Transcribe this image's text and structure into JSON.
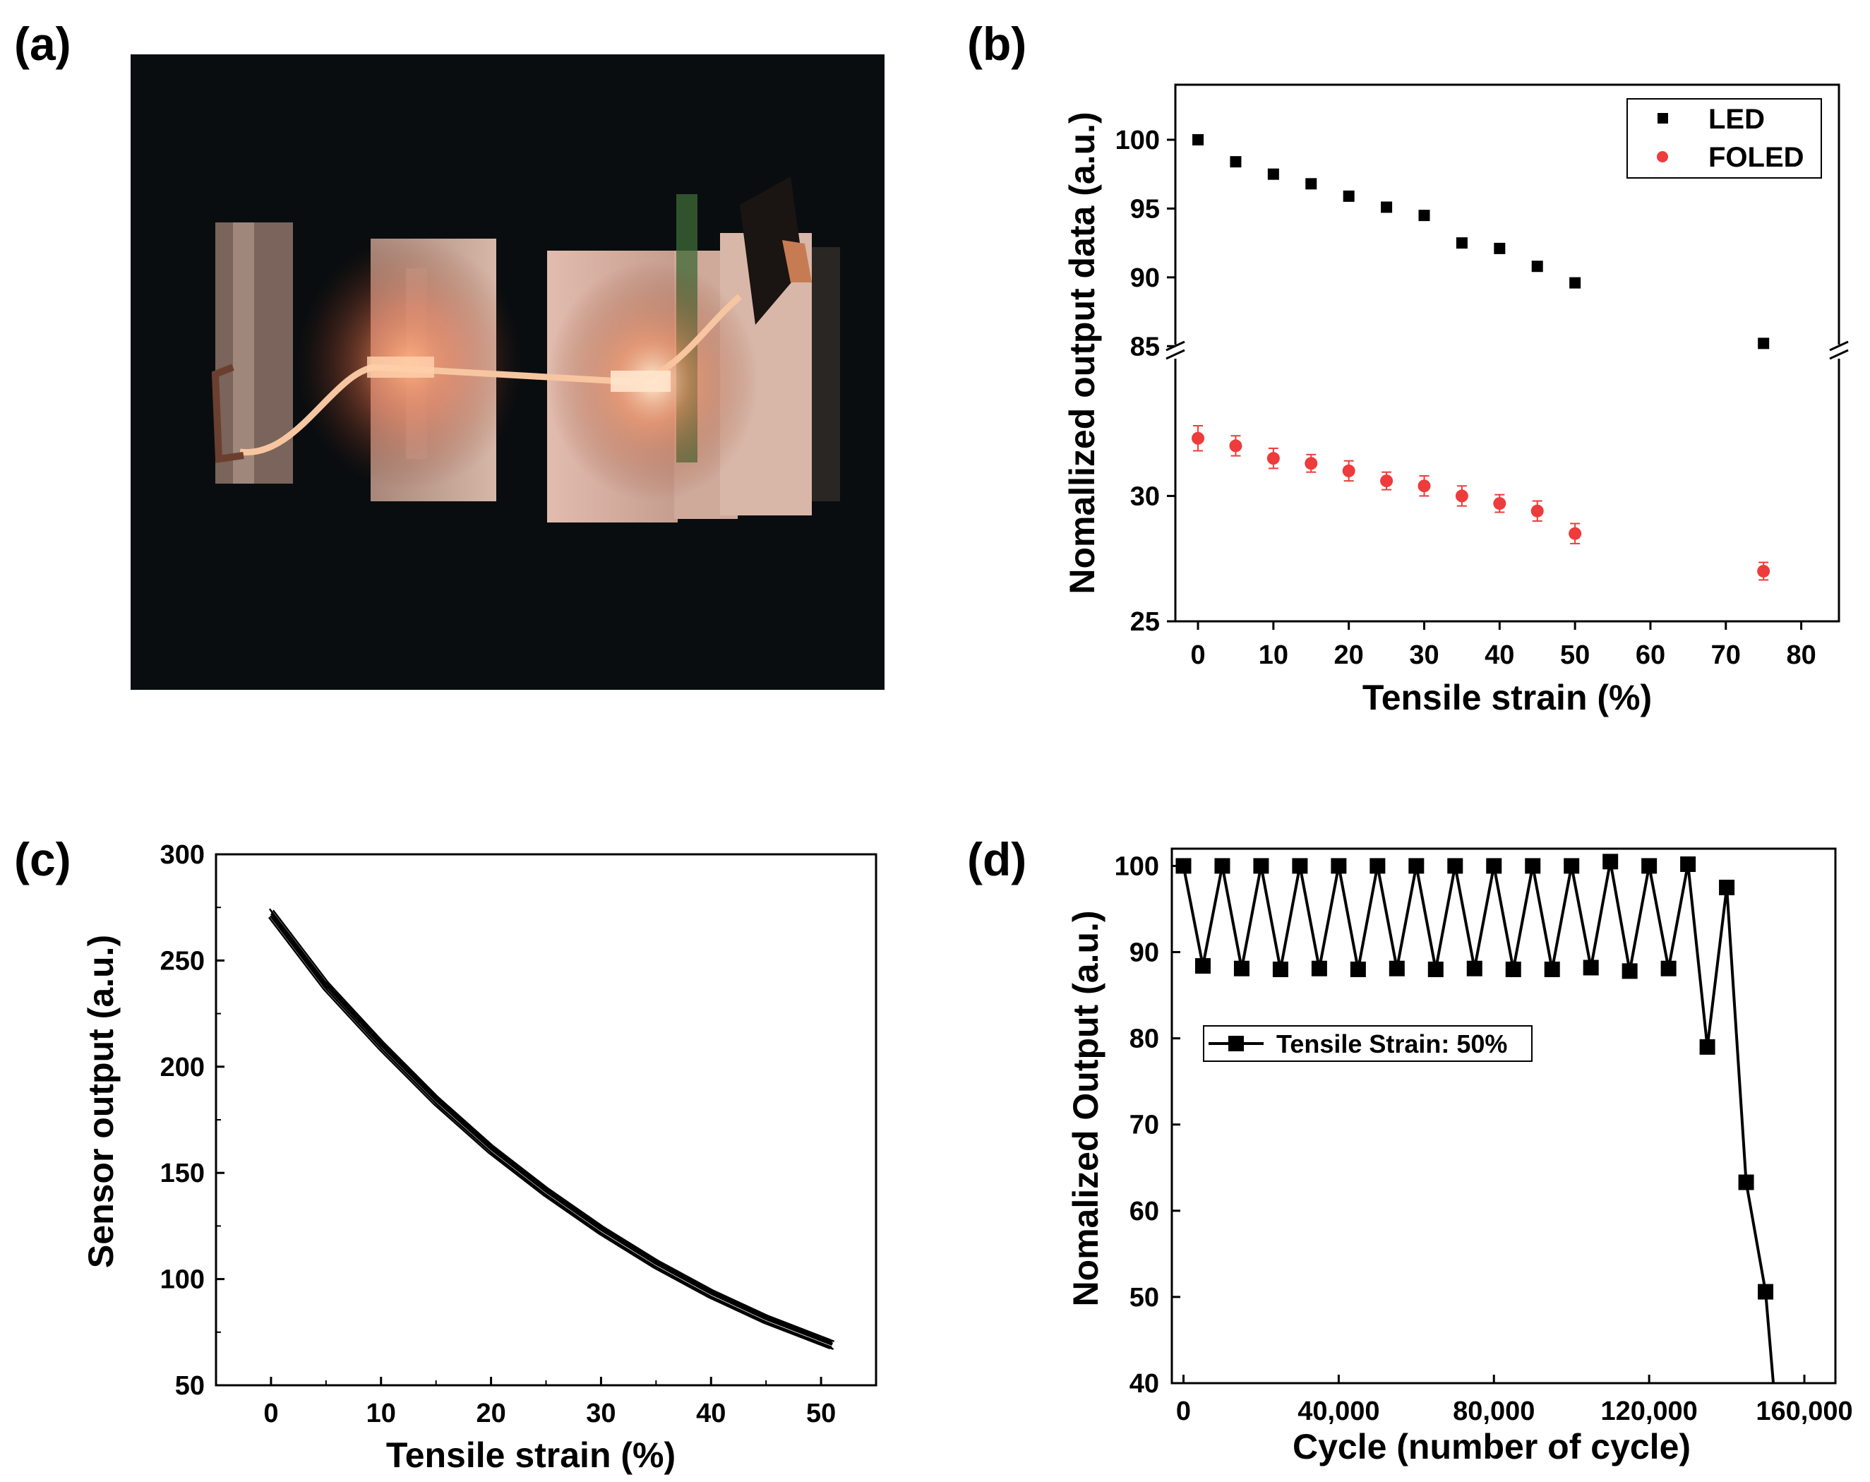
{
  "panel_labels": [
    "(a)",
    "(b)",
    "(c)",
    "(d)"
  ],
  "colors": {
    "black": "#000000",
    "red": "#ee3b3b"
  },
  "chart_data": [
    {
      "panel": "(b)",
      "type": "scatter",
      "xlabel": "Tensile strain (%)",
      "ylabel": "Nomallized output data (a.u.)",
      "xlim": [
        -3,
        85
      ],
      "xticks": [
        0,
        10,
        20,
        30,
        40,
        50,
        60,
        70,
        80
      ],
      "y_axis_break": true,
      "upper_segment": {
        "ylim": [
          84.5,
          104
        ],
        "yticks": [
          100,
          95,
          90,
          85
        ]
      },
      "lower_segment": {
        "ylim": [
          25,
          35.7
        ],
        "yticks": [
          30,
          25
        ]
      },
      "legend": {
        "position": "top-right",
        "entries": [
          "LED",
          "FOLED"
        ]
      },
      "series": [
        {
          "name": "LED",
          "marker": "square",
          "color": "#000000",
          "segment": "upper",
          "x": [
            0,
            5,
            10,
            15,
            20,
            25,
            30,
            35,
            40,
            45,
            50,
            75
          ],
          "y": [
            100,
            98.4,
            97.5,
            96.8,
            95.9,
            95.1,
            94.5,
            92.5,
            92.1,
            90.8,
            89.6,
            85.2
          ]
        },
        {
          "name": "FOLED",
          "marker": "circle",
          "color": "#ee3b3b",
          "segment": "lower",
          "x": [
            0,
            5,
            10,
            15,
            20,
            25,
            30,
            35,
            40,
            45,
            50,
            75
          ],
          "y": [
            32.3,
            32.0,
            31.5,
            31.3,
            31.0,
            30.6,
            30.4,
            30.0,
            29.7,
            29.4,
            28.5,
            27.0
          ],
          "error": [
            0.5,
            0.4,
            0.4,
            0.35,
            0.4,
            0.35,
            0.4,
            0.4,
            0.35,
            0.4,
            0.4,
            0.35
          ]
        }
      ]
    },
    {
      "panel": "(c)",
      "type": "line",
      "xlabel": "Tensile strain (%)",
      "ylabel": "Sensor output (a.u.)",
      "xlim": [
        -5,
        55
      ],
      "ylim": [
        50,
        300
      ],
      "xticks": [
        0,
        10,
        20,
        30,
        40,
        50
      ],
      "yticks": [
        50,
        100,
        150,
        200,
        250,
        300
      ],
      "note": "many overlapping strain cycles",
      "series": [
        {
          "name": "Sensor output",
          "color": "#000000",
          "x": [
            0,
            5,
            10,
            15,
            20,
            25,
            30,
            35,
            40,
            45,
            50,
            51
          ],
          "y": [
            272,
            238,
            210,
            184,
            161,
            141,
            123,
            107,
            93,
            81,
            71,
            69
          ]
        }
      ]
    },
    {
      "panel": "(d)",
      "type": "line",
      "xlabel": "Cycle (number of cycle)",
      "ylabel": "Nomalized Output (a.u.)",
      "xlim": [
        -3000,
        168000
      ],
      "ylim": [
        40,
        102
      ],
      "xticks": [
        0,
        40000,
        80000,
        120000,
        160000
      ],
      "xtick_labels": [
        "0",
        "40,000",
        "80,000",
        "120,000",
        "160,000"
      ],
      "yticks": [
        40,
        50,
        60,
        70,
        80,
        90,
        100
      ],
      "legend": {
        "position": "middle-left",
        "entries": [
          "Tensile Strain: 50%"
        ]
      },
      "series": [
        {
          "name": "Tensile Strain: 50%",
          "marker": "square",
          "color": "#000000",
          "x": [
            0,
            5000,
            10000,
            15000,
            20000,
            25000,
            30000,
            35000,
            40000,
            45000,
            50000,
            55000,
            60000,
            65000,
            70000,
            75000,
            80000,
            85000,
            90000,
            95000,
            100000,
            105000,
            110000,
            115000,
            120000,
            125000,
            130000,
            135000,
            140000,
            145000,
            150000,
            152000
          ],
          "y": [
            100,
            88.4,
            100,
            88.1,
            100,
            88.0,
            100,
            88.1,
            100,
            88.0,
            100,
            88.1,
            100,
            88.0,
            100,
            88.1,
            100,
            88.0,
            100,
            88.0,
            100,
            88.2,
            100.5,
            87.8,
            100,
            88.1,
            100.2,
            79.0,
            97.5,
            63.3,
            50.6,
            40
          ]
        }
      ]
    }
  ]
}
